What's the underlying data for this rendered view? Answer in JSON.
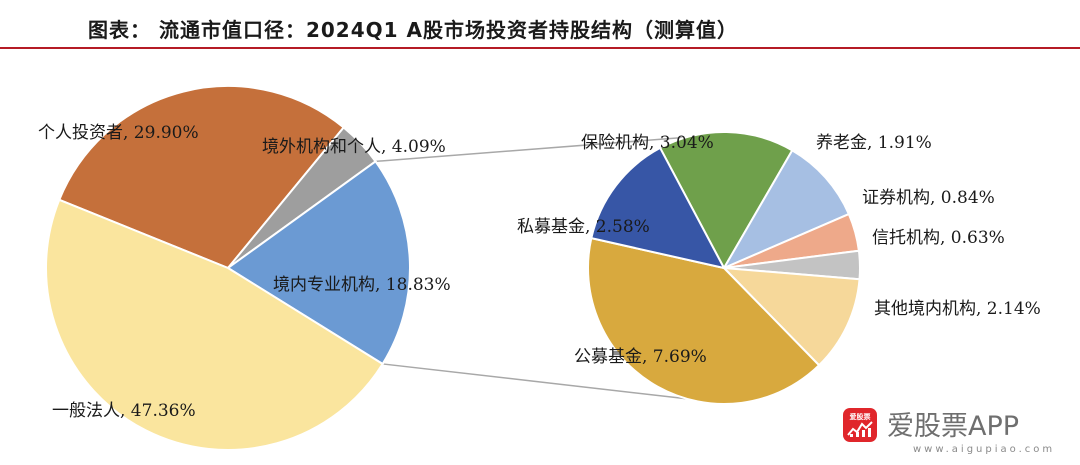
{
  "title": "图表： 流通市值口径：2024Q1 A股市场投资者持股结构（测算值）",
  "chart_data": {
    "type": "pie",
    "main_pie": {
      "slices": [
        {
          "label": "个人投资者",
          "value": 29.9,
          "display": "个人投资者, 29.90%",
          "color": "#c5703b"
        },
        {
          "label": "境外机构和个人",
          "value": 4.09,
          "display": "境外机构和个人, 4.09%",
          "color": "#9e9e9e"
        },
        {
          "label": "境内专业机构",
          "value": 18.83,
          "display": "境内专业机构, 18.83%",
          "color": "#6b9ad3"
        },
        {
          "label": "一般法人",
          "value": 47.36,
          "display": "一般法人, 47.36%",
          "color": "#fae59e"
        }
      ]
    },
    "sub_pie": {
      "parent": "境内专业机构",
      "slices": [
        {
          "label": "保险机构",
          "value": 3.04,
          "display": "保险机构, 3.04%",
          "color": "#6fa04b"
        },
        {
          "label": "养老金",
          "value": 1.91,
          "display": "养老金, 1.91%",
          "color": "#a6bfe3"
        },
        {
          "label": "证券机构",
          "value": 0.84,
          "display": "证券机构, 0.84%",
          "color": "#eea98a"
        },
        {
          "label": "信托机构",
          "value": 0.63,
          "display": "信托机构, 0.63%",
          "color": "#c3c3c3"
        },
        {
          "label": "其他境内机构",
          "value": 2.14,
          "display": "其他境内机构, 2.14%",
          "color": "#f6d89a"
        },
        {
          "label": "公募基金",
          "value": 7.69,
          "display": "公募基金, 7.69%",
          "color": "#d8a93e"
        },
        {
          "label": "私募基金",
          "value": 2.58,
          "display": "私募基金, 2.58%",
          "color": "#3756a6"
        }
      ]
    },
    "legend": "none"
  },
  "watermark": {
    "brand": "爱股票APP",
    "url": "www.aigupiao.com",
    "logo_text": "爱股票"
  }
}
